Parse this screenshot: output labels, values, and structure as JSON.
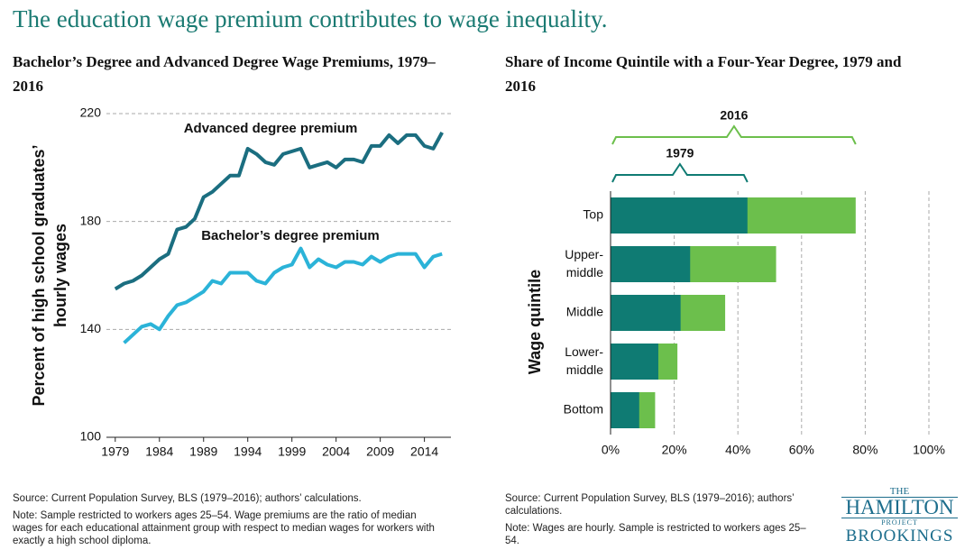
{
  "title": "The education wage premium contributes to wage inequality.",
  "chart_data": [
    {
      "type": "line",
      "title": "Bachelor’s Degree and Advanced Degree Wage Premiums, 1979–2016",
      "y_label": [
        "Percent of high school graduates’",
        "hourly wages"
      ],
      "x": [
        1979,
        1980,
        1981,
        1982,
        1983,
        1984,
        1985,
        1986,
        1987,
        1988,
        1989,
        1990,
        1991,
        1992,
        1993,
        1994,
        1995,
        1996,
        1997,
        1998,
        1999,
        2000,
        2001,
        2002,
        2003,
        2004,
        2005,
        2006,
        2007,
        2008,
        2009,
        2010,
        2011,
        2012,
        2013,
        2014,
        2015,
        2016
      ],
      "series": [
        {
          "name": "Advanced degree premium",
          "color": "#1b6e80",
          "values": [
            155,
            157,
            158,
            160,
            163,
            166,
            168,
            177,
            178,
            181,
            189,
            191,
            194,
            197,
            197,
            207,
            205,
            202,
            201,
            205,
            206,
            207,
            200,
            201,
            202,
            200,
            203,
            203,
            202,
            208,
            208,
            212,
            209,
            212,
            212,
            208,
            207,
            213
          ]
        },
        {
          "name": "Bachelor’s degree premium",
          "color": "#2bb3d8",
          "values": [
            null,
            135,
            138,
            141,
            142,
            140,
            145,
            149,
            150,
            152,
            154,
            158,
            157,
            161,
            161,
            161,
            158,
            157,
            161,
            163,
            164,
            170,
            163,
            166,
            164,
            163,
            165,
            165,
            164,
            167,
            165,
            167,
            168,
            168,
            168,
            163,
            167,
            168
          ]
        }
      ],
      "xlim": [
        1978,
        2017
      ],
      "xticks": [
        1979,
        1984,
        1989,
        1994,
        1999,
        2004,
        2009,
        2014
      ],
      "ylim": [
        100,
        220
      ],
      "yticks": [
        100,
        140,
        180,
        220
      ],
      "grid": true
    },
    {
      "type": "overlay_barh",
      "title": "Share of Income Quintile with a Four-Year Degree, 1979 and 2016",
      "y_label": "Wage quintile",
      "categories": [
        "Top",
        "Upper-middle",
        "Middle",
        "Lower-middle",
        "Bottom"
      ],
      "series": [
        {
          "name": "2016",
          "color": "#6cbf4c",
          "values": [
            77,
            52,
            36,
            21,
            14
          ]
        },
        {
          "name": "1979",
          "color": "#0f7b73",
          "values": [
            43,
            25,
            22,
            15,
            9
          ]
        }
      ],
      "xlim": [
        0,
        100
      ],
      "xticks": [
        {
          "value": 0,
          "label": "0%"
        },
        {
          "value": 20,
          "label": "20%"
        },
        {
          "value": 40,
          "label": "40%"
        },
        {
          "value": 60,
          "label": "60%"
        },
        {
          "value": 80,
          "label": "80%"
        },
        {
          "value": 100,
          "label": "100%"
        }
      ],
      "grid": true
    }
  ],
  "notes": [
    {
      "source": "Source: Current Population Survey, BLS (1979–2016); authors’ calculations.",
      "note": "Note: Sample restricted to workers ages 25–54. Wage premiums are the ratio of median wages for each educational attainment group with respect to median wages for workers with exactly a high school diploma."
    },
    {
      "source": "Source: Current Population Survey, BLS (1979–2016); authors’ calculations.",
      "note": "Note: Wages are hourly. Sample is restricted to workers ages 25–54."
    }
  ],
  "logo": [
    "THE",
    "HAMILTON",
    "PROJECT",
    "BROOKINGS"
  ]
}
